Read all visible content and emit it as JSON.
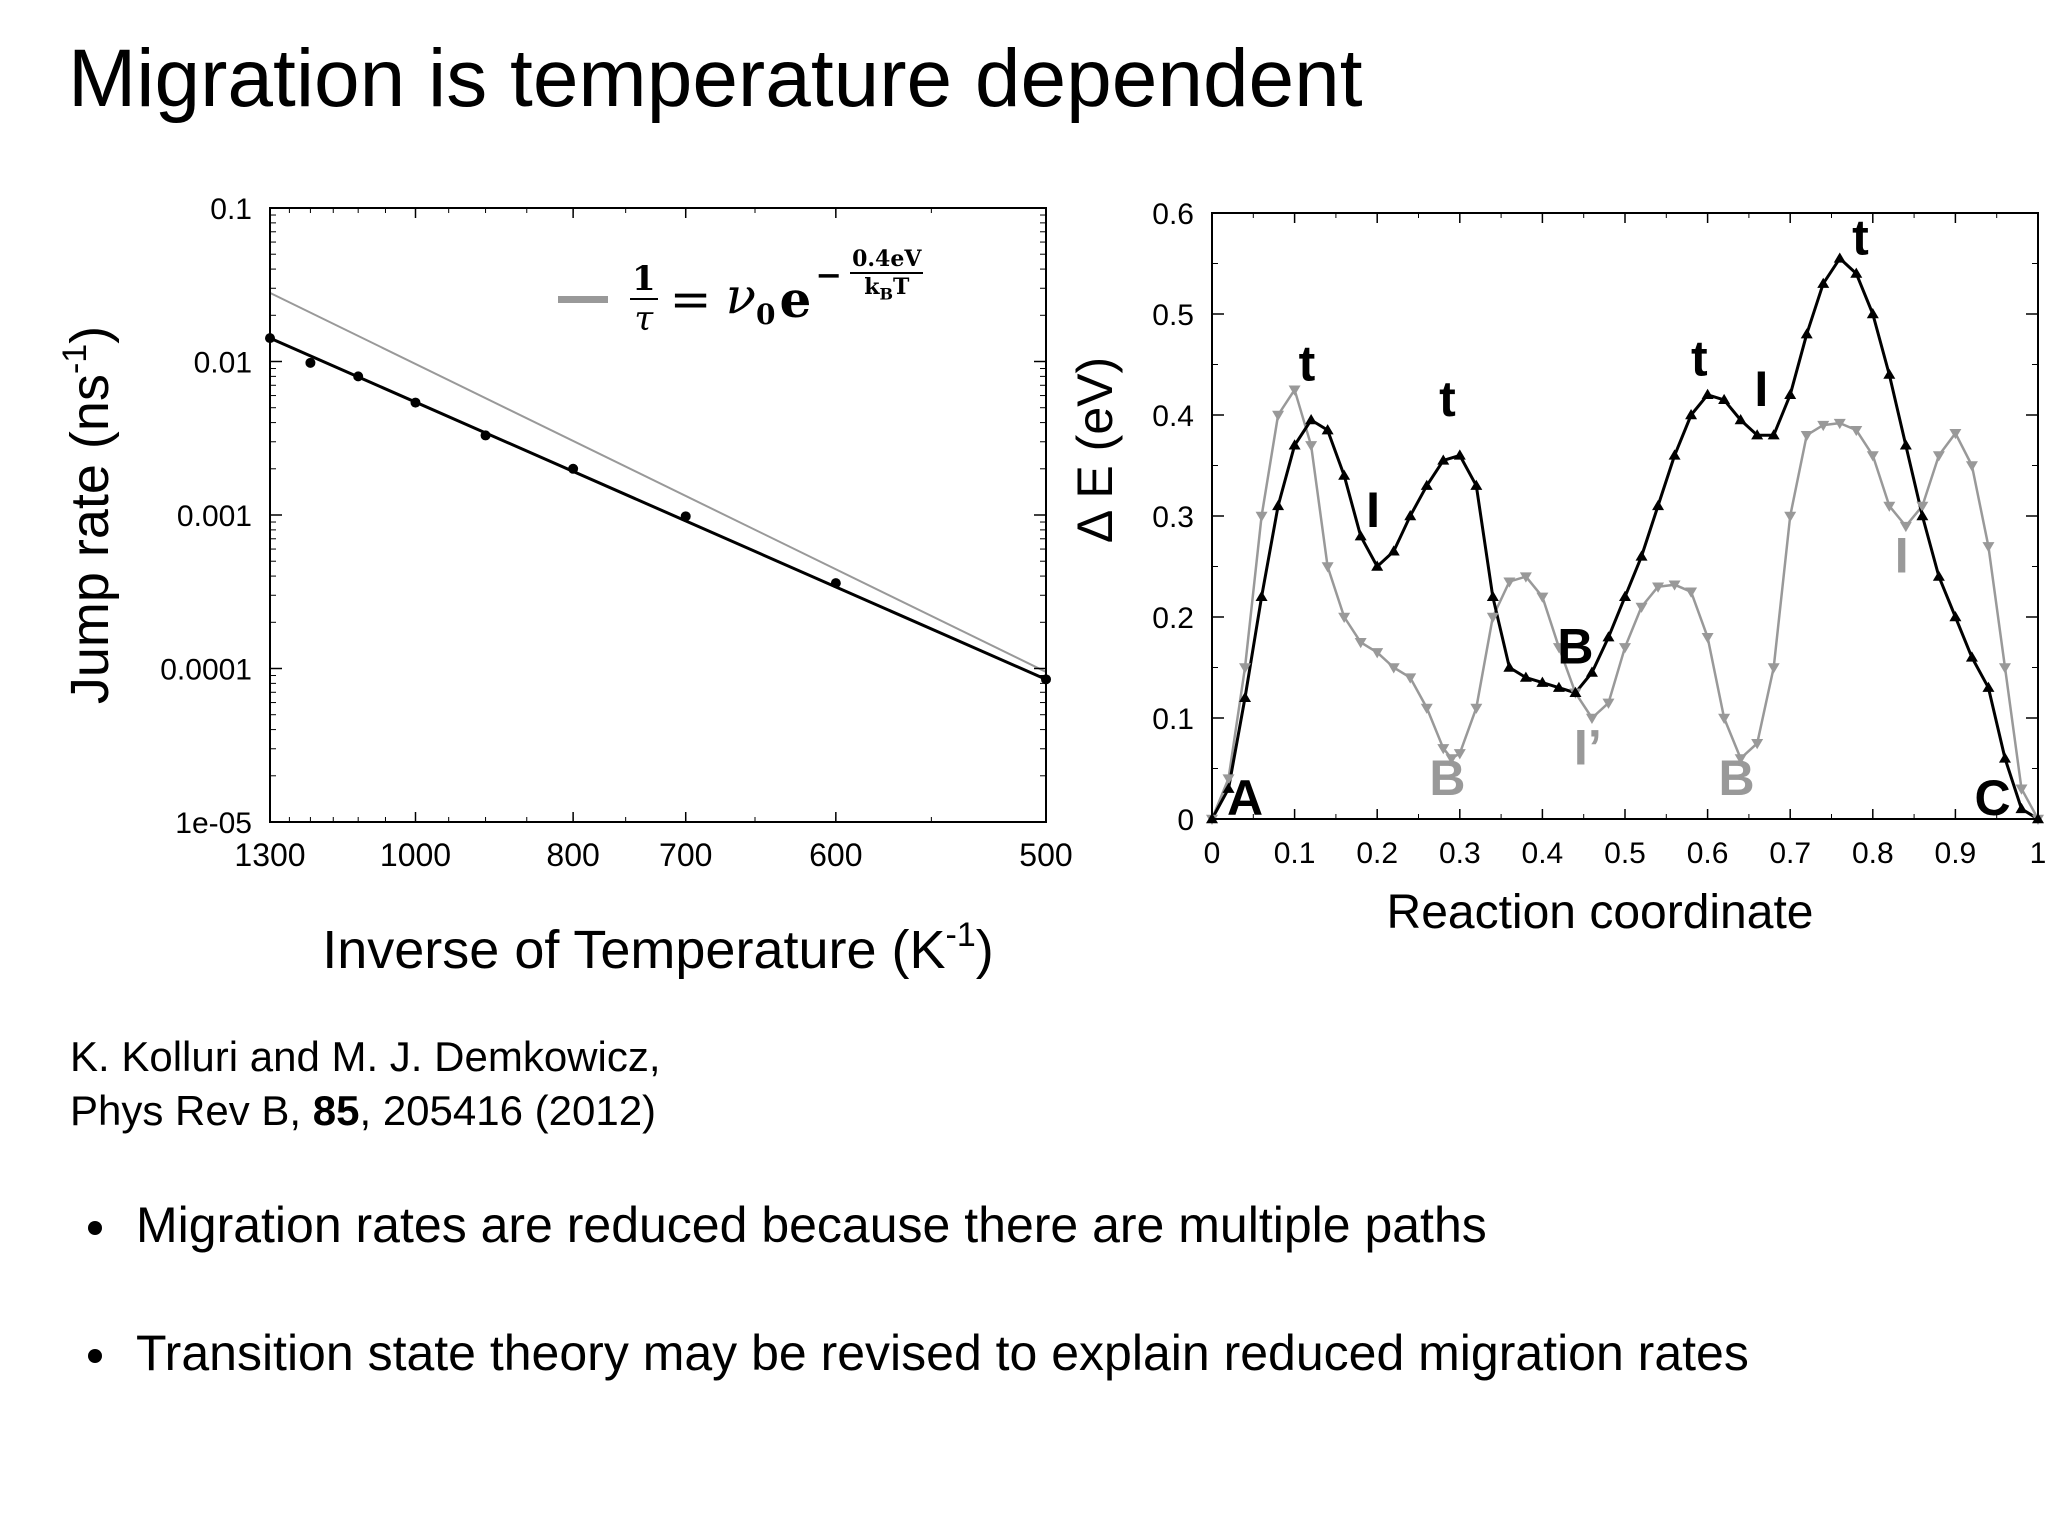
{
  "slide": {
    "title": "Migration is temperature dependent",
    "citation_line1": "K. Kolluri and M. J. Demkowicz,",
    "citation_line2_pre": "Phys Rev B, ",
    "citation_volume": "85",
    "citation_line2_post": ", 205416 (2012)",
    "bullets": [
      "Migration rates are reduced because there are multiple paths",
      "Transition state theory may be revised to explain reduced migration rates"
    ]
  },
  "chart_data": [
    {
      "type": "scatter",
      "xlabel_text": "Inverse of Temperature (K",
      "xlabel_sup": "-1",
      "xlabel_close": ")",
      "ylabel_text": "Jump rate (ns",
      "ylabel_sup": "-1",
      "ylabel_close": ")",
      "x_scale": "reciprocal",
      "x_ticks": [
        1300,
        1000,
        800,
        700,
        600,
        500
      ],
      "x_tick_labels": [
        "1300",
        "1000",
        "800",
        "700",
        "600",
        "500"
      ],
      "y_scale": "log",
      "ylim": [
        1e-05,
        0.1
      ],
      "y_ticks": [
        0.1,
        0.01,
        0.001,
        0.0001,
        1e-05
      ],
      "y_tick_labels": [
        "0.1",
        "0.01",
        "0.001",
        "0.0001",
        "1e-05"
      ],
      "points": [
        {
          "T": 1300,
          "rate": 0.0142
        },
        {
          "T": 1200,
          "rate": 0.0098
        },
        {
          "T": 1100,
          "rate": 0.008
        },
        {
          "T": 1000,
          "rate": 0.0054
        },
        {
          "T": 900,
          "rate": 0.0033
        },
        {
          "T": 800,
          "rate": 0.002
        },
        {
          "T": 700,
          "rate": 0.00098
        },
        {
          "T": 600,
          "rate": 0.00036
        },
        {
          "T": 500,
          "rate": 8.5e-05
        }
      ],
      "fit_line": [
        {
          "T": 1300,
          "rate": 0.0142
        },
        {
          "T": 500,
          "rate": 8.5e-05
        }
      ],
      "arrhenius_line": [
        {
          "T": 1300,
          "rate": 0.028
        },
        {
          "T": 500,
          "rate": 9.5e-05
        }
      ],
      "legend": {
        "placement": "top-right",
        "formula": {
          "numerator": "1",
          "denominator": "τ",
          "equals": "=",
          "prefactor": "ν",
          "prefactor_sub": "0",
          "base": "e",
          "exponent_sign": "−",
          "exponent_num": "0.4eV",
          "exponent_den": "k",
          "exponent_den_sub": "B",
          "exponent_den_post": "T"
        }
      },
      "colors": {
        "data": "#000000",
        "arrhenius": "#999999"
      }
    },
    {
      "type": "line",
      "xlabel": "Reaction coordinate",
      "ylabel": "Δ E (eV)",
      "xlim": [
        0,
        1
      ],
      "ylim": [
        0,
        0.6
      ],
      "x_ticks": [
        0,
        0.1,
        0.2,
        0.3,
        0.4,
        0.5,
        0.6,
        0.7,
        0.8,
        0.9,
        1
      ],
      "x_tick_labels": [
        "0",
        "0.1",
        "0.2",
        "0.3",
        "0.4",
        "0.5",
        "0.6",
        "0.7",
        "0.8",
        "0.9",
        "1"
      ],
      "y_ticks": [
        0,
        0.1,
        0.2,
        0.3,
        0.4,
        0.5,
        0.6
      ],
      "y_tick_labels": [
        "0",
        "0.1",
        "0.2",
        "0.3",
        "0.4",
        "0.5",
        "0.6"
      ],
      "series": [
        {
          "marker": "triangle-up",
          "color": "#000000",
          "points": [
            [
              0,
              0
            ],
            [
              0.02,
              0.03
            ],
            [
              0.04,
              0.12
            ],
            [
              0.06,
              0.22
            ],
            [
              0.08,
              0.31
            ],
            [
              0.1,
              0.37
            ],
            [
              0.12,
              0.395
            ],
            [
              0.14,
              0.385
            ],
            [
              0.16,
              0.34
            ],
            [
              0.18,
              0.28
            ],
            [
              0.2,
              0.25
            ],
            [
              0.22,
              0.265
            ],
            [
              0.24,
              0.3
            ],
            [
              0.26,
              0.33
            ],
            [
              0.28,
              0.355
            ],
            [
              0.3,
              0.36
            ],
            [
              0.32,
              0.33
            ],
            [
              0.34,
              0.22
            ],
            [
              0.36,
              0.15
            ],
            [
              0.38,
              0.14
            ],
            [
              0.4,
              0.135
            ],
            [
              0.42,
              0.13
            ],
            [
              0.44,
              0.125
            ],
            [
              0.46,
              0.145
            ],
            [
              0.48,
              0.18
            ],
            [
              0.5,
              0.22
            ],
            [
              0.52,
              0.26
            ],
            [
              0.54,
              0.31
            ],
            [
              0.56,
              0.36
            ],
            [
              0.58,
              0.4
            ],
            [
              0.6,
              0.42
            ],
            [
              0.62,
              0.415
            ],
            [
              0.64,
              0.395
            ],
            [
              0.66,
              0.38
            ],
            [
              0.68,
              0.38
            ],
            [
              0.7,
              0.42
            ],
            [
              0.72,
              0.48
            ],
            [
              0.74,
              0.53
            ],
            [
              0.76,
              0.555
            ],
            [
              0.78,
              0.54
            ],
            [
              0.8,
              0.5
            ],
            [
              0.82,
              0.44
            ],
            [
              0.84,
              0.37
            ],
            [
              0.86,
              0.3
            ],
            [
              0.88,
              0.24
            ],
            [
              0.9,
              0.2
            ],
            [
              0.92,
              0.16
            ],
            [
              0.94,
              0.13
            ],
            [
              0.96,
              0.06
            ],
            [
              0.98,
              0.01
            ],
            [
              1,
              0
            ]
          ]
        },
        {
          "marker": "triangle-down",
          "color": "#999999",
          "points": [
            [
              0,
              0
            ],
            [
              0.02,
              0.04
            ],
            [
              0.04,
              0.15
            ],
            [
              0.06,
              0.3
            ],
            [
              0.08,
              0.4
            ],
            [
              0.1,
              0.425
            ],
            [
              0.12,
              0.37
            ],
            [
              0.14,
              0.25
            ],
            [
              0.16,
              0.2
            ],
            [
              0.18,
              0.175
            ],
            [
              0.2,
              0.165
            ],
            [
              0.22,
              0.15
            ],
            [
              0.24,
              0.14
            ],
            [
              0.26,
              0.11
            ],
            [
              0.28,
              0.07
            ],
            [
              0.29,
              0.06
            ],
            [
              0.3,
              0.065
            ],
            [
              0.32,
              0.11
            ],
            [
              0.34,
              0.2
            ],
            [
              0.36,
              0.235
            ],
            [
              0.38,
              0.24
            ],
            [
              0.4,
              0.22
            ],
            [
              0.42,
              0.17
            ],
            [
              0.44,
              0.125
            ],
            [
              0.46,
              0.1
            ],
            [
              0.48,
              0.115
            ],
            [
              0.5,
              0.17
            ],
            [
              0.52,
              0.21
            ],
            [
              0.54,
              0.23
            ],
            [
              0.56,
              0.232
            ],
            [
              0.58,
              0.225
            ],
            [
              0.6,
              0.18
            ],
            [
              0.62,
              0.1
            ],
            [
              0.64,
              0.06
            ],
            [
              0.66,
              0.075
            ],
            [
              0.68,
              0.15
            ],
            [
              0.7,
              0.3
            ],
            [
              0.72,
              0.38
            ],
            [
              0.74,
              0.39
            ],
            [
              0.76,
              0.392
            ],
            [
              0.78,
              0.385
            ],
            [
              0.8,
              0.36
            ],
            [
              0.82,
              0.31
            ],
            [
              0.84,
              0.29
            ],
            [
              0.86,
              0.31
            ],
            [
              0.88,
              0.36
            ],
            [
              0.9,
              0.382
            ],
            [
              0.92,
              0.35
            ],
            [
              0.94,
              0.27
            ],
            [
              0.96,
              0.15
            ],
            [
              0.98,
              0.03
            ],
            [
              1,
              0
            ]
          ]
        }
      ],
      "annotations": [
        {
          "text": "A",
          "x": 0.04,
          "y": 0.0,
          "color": "#000000"
        },
        {
          "text": "t",
          "x": 0.115,
          "y": 0.43,
          "color": "#000000"
        },
        {
          "text": "I",
          "x": 0.195,
          "y": 0.285,
          "color": "#000000"
        },
        {
          "text": "t",
          "x": 0.285,
          "y": 0.395,
          "color": "#000000"
        },
        {
          "text": "B",
          "x": 0.285,
          "y": 0.02,
          "color": "#999999"
        },
        {
          "text": "B",
          "x": 0.44,
          "y": 0.15,
          "color": "#000000"
        },
        {
          "text": "I’",
          "x": 0.455,
          "y": 0.05,
          "color": "#999999"
        },
        {
          "text": "t",
          "x": 0.59,
          "y": 0.435,
          "color": "#000000"
        },
        {
          "text": "B",
          "x": 0.635,
          "y": 0.02,
          "color": "#999999"
        },
        {
          "text": "I",
          "x": 0.665,
          "y": 0.405,
          "color": "#000000"
        },
        {
          "text": "t",
          "x": 0.785,
          "y": 0.555,
          "color": "#000000"
        },
        {
          "text": "I",
          "x": 0.835,
          "y": 0.24,
          "color": "#999999"
        },
        {
          "text": "C",
          "x": 0.945,
          "y": 0.0,
          "color": "#000000"
        }
      ]
    }
  ]
}
